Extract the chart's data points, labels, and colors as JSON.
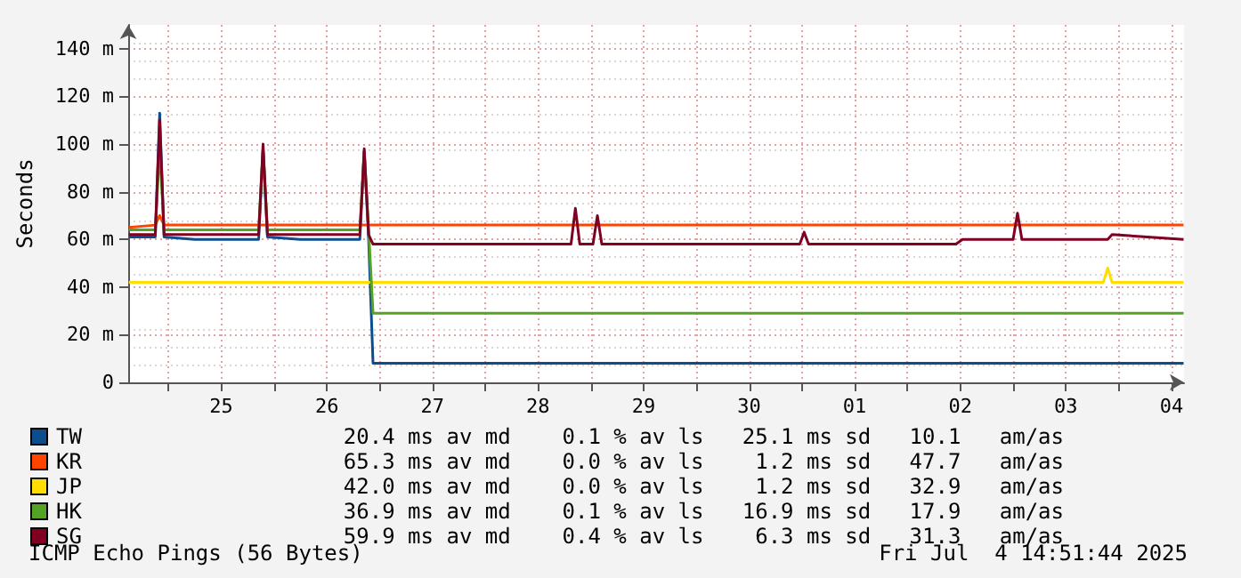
{
  "chart_data": {
    "type": "line",
    "ylabel": "Seconds",
    "x": [
      "2025-06-24T15:00",
      "2025-06-24T21:00",
      "2025-06-24T22:00",
      "2025-06-24T23:00",
      "2025-06-25T06:00",
      "2025-06-25T20:30",
      "2025-06-25T21:30",
      "2025-06-25T22:30",
      "2025-06-26T06:00",
      "2025-06-26T19:30",
      "2025-06-26T20:30",
      "2025-06-26T21:30",
      "2025-06-26T22:30",
      "2025-06-27T12:00",
      "2025-06-28T12:00",
      "2025-06-28T19:30",
      "2025-06-28T20:30",
      "2025-06-28T21:30",
      "2025-06-29T00:30",
      "2025-06-29T01:30",
      "2025-06-29T02:30",
      "2025-06-29T12:00",
      "2025-06-30T12:00",
      "2025-06-30T23:30",
      "2025-07-01T00:30",
      "2025-07-01T01:30",
      "2025-07-01T12:00",
      "2025-07-02T11:00",
      "2025-07-02T12:30",
      "2025-07-03T00:00",
      "2025-07-03T01:00",
      "2025-07-03T02:00",
      "2025-07-03T20:30",
      "2025-07-03T21:30",
      "2025-07-03T22:30",
      "2025-07-04T14:45"
    ],
    "series": [
      {
        "name": "TW",
        "color": "#0b4d8f",
        "values": [
          61,
          61,
          113,
          61,
          60,
          60,
          98,
          61,
          60,
          60,
          97,
          60,
          8,
          8,
          8,
          8,
          8,
          8,
          8,
          8,
          8,
          8,
          8,
          8,
          8,
          8,
          8,
          8,
          8,
          8,
          8,
          8,
          8,
          8,
          8,
          8
        ]
      },
      {
        "name": "KR",
        "color": "#ff4400",
        "values": [
          65,
          66,
          70,
          66,
          66,
          66,
          66,
          66,
          66,
          66,
          66,
          66,
          66,
          66,
          66,
          66,
          66,
          66,
          66,
          66,
          66,
          66,
          66,
          66,
          66,
          66,
          66,
          66,
          66,
          66,
          66,
          66,
          66,
          66,
          66,
          66
        ]
      },
      {
        "name": "JP",
        "color": "#ffdd00",
        "values": [
          42,
          42,
          42,
          42,
          42,
          42,
          42,
          42,
          42,
          42,
          42,
          42,
          42,
          42,
          42,
          42,
          42,
          42,
          42,
          42,
          42,
          42,
          42,
          42,
          42,
          42,
          42,
          42,
          42,
          42,
          42,
          42,
          42,
          48,
          42,
          42
        ]
      },
      {
        "name": "HK",
        "color": "#55a322",
        "values": [
          64,
          64,
          98,
          64,
          64,
          64,
          98,
          64,
          64,
          64,
          97,
          64,
          29,
          29,
          29,
          29,
          29,
          29,
          29,
          29,
          29,
          29,
          29,
          29,
          29,
          29,
          29,
          29,
          29,
          29,
          29,
          29,
          29,
          29,
          29,
          29
        ]
      },
      {
        "name": "SG",
        "color": "#7f0020",
        "values": [
          62,
          62,
          110,
          62,
          62,
          62,
          100,
          62,
          62,
          62,
          98,
          62,
          58,
          58,
          58,
          58,
          73,
          58,
          58,
          70,
          58,
          58,
          58,
          58,
          63,
          58,
          58,
          58,
          60,
          60,
          71,
          60,
          60,
          60,
          62,
          60
        ]
      }
    ],
    "xlim": [
      "2025-06-24T14:51",
      "2025-07-04T14:51"
    ],
    "xticks": [
      {
        "value": "2025-06-25T00:00",
        "label": null
      },
      {
        "value": "2025-06-25T12:00",
        "label": "25"
      },
      {
        "value": "2025-06-26T00:00",
        "label": null
      },
      {
        "value": "2025-06-26T12:00",
        "label": "26"
      },
      {
        "value": "2025-06-27T00:00",
        "label": null
      },
      {
        "value": "2025-06-27T12:00",
        "label": "27"
      },
      {
        "value": "2025-06-28T00:00",
        "label": null
      },
      {
        "value": "2025-06-28T12:00",
        "label": "28"
      },
      {
        "value": "2025-06-29T00:00",
        "label": null
      },
      {
        "value": "2025-06-29T12:00",
        "label": "29"
      },
      {
        "value": "2025-06-30T00:00",
        "label": null
      },
      {
        "value": "2025-06-30T12:00",
        "label": "30"
      },
      {
        "value": "2025-07-01T00:00",
        "label": null
      },
      {
        "value": "2025-07-01T12:00",
        "label": "01"
      },
      {
        "value": "2025-07-02T00:00",
        "label": null
      },
      {
        "value": "2025-07-02T12:00",
        "label": "02"
      },
      {
        "value": "2025-07-03T00:00",
        "label": null
      },
      {
        "value": "2025-07-03T12:00",
        "label": "03"
      },
      {
        "value": "2025-07-04T00:00",
        "label": null
      },
      {
        "value": "2025-07-04T12:00",
        "label": "04"
      }
    ],
    "ylim": [
      0,
      150
    ],
    "yticks": [
      0,
      {
        "value": 20,
        "label": "20 m"
      },
      {
        "value": 40,
        "label": "40 m"
      },
      {
        "value": 60,
        "label": "60 m"
      },
      {
        "value": 80,
        "label": "80 m"
      },
      {
        "value": 100,
        "label": "100 m"
      },
      {
        "value": 120,
        "label": "120 m"
      },
      {
        "value": 140,
        "label": "140 m"
      }
    ],
    "grid": true,
    "legend": "bottom left",
    "marker": "none",
    "line_style": "solid",
    "annotations": [
      "20.4 ms av md    0.1 % av ls   25.1 ms sd   10.1   am/as",
      "65.3 ms av md    0.0 % av ls    1.2 ms sd   47.7   am/as",
      "42.0 ms av md    0.0 % av ls    1.2 ms sd   32.9   am/as",
      "36.9 ms av md    0.1 % av ls   16.9 ms sd   17.9   am/as",
      "59.9 ms av md    0.4 % av ls    6.3 ms sd   31.3   am/as",
      "ICMP Echo Pings (56 Bytes)",
      "Fri Jul  4 14:51:44 2025"
    ]
  }
}
